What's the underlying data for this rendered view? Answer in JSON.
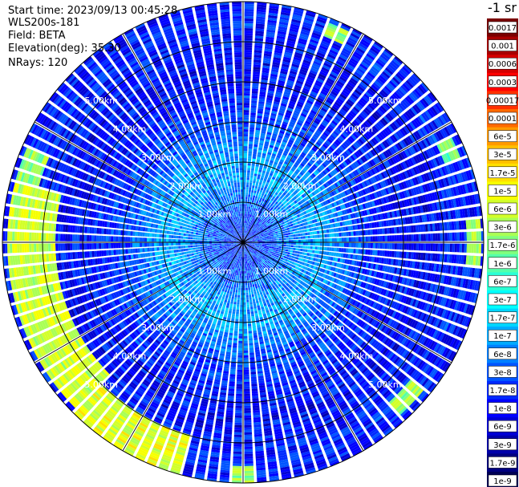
{
  "header": {
    "start_time": "Start time: 2023/09/13 00:45:28",
    "instrument": "WLS200s-181",
    "field": "Field: BETA",
    "elevation": "Elevation(deg): 35.30",
    "nrays": "NRays: 120"
  },
  "colorbar": {
    "unit_label": "-1 sr",
    "labels": [
      "0.0017",
      "0.001",
      "0.0006",
      "0.0003",
      "0.00017",
      "0.0001",
      "6e-5",
      "3e-5",
      "1.7e-5",
      "1e-5",
      "6e-6",
      "3e-6",
      "1.7e-6",
      "1e-6",
      "6e-7",
      "3e-7",
      "1.7e-7",
      "1e-7",
      "6e-8",
      "3e-8",
      "1.7e-8",
      "1e-8",
      "6e-9",
      "3e-9",
      "1.7e-9",
      "1e-9"
    ],
    "colors": [
      "#7a0000",
      "#a80000",
      "#d40000",
      "#ff0000",
      "#ff3000",
      "#ff6a00",
      "#ff9a00",
      "#ffbf00",
      "#ffe000",
      "#f6ff00",
      "#d2ff2a",
      "#a9ff55",
      "#80ff7e",
      "#55ffaa",
      "#2affd5",
      "#00ffff",
      "#00d5ff",
      "#00aaff",
      "#0080ff",
      "#0055ff",
      "#002aff",
      "#0000ff",
      "#0000d5",
      "#0000aa",
      "#000080",
      "#000055"
    ]
  },
  "chart_data": {
    "type": "heatmap",
    "projection": "polar (PPI scan)",
    "field": "BETA",
    "nrays": 120,
    "range_ring_labels": [
      "1.00km",
      "2.00km",
      "3.00km",
      "4.00km",
      "5.00km"
    ],
    "range_rings_km": [
      1,
      2,
      3,
      4,
      5
    ],
    "max_range_km": 6.0,
    "azimuth_spokes_deg": [
      0,
      30,
      60,
      90,
      120,
      150,
      180,
      210,
      240,
      270,
      300,
      330
    ],
    "beta_log10_by_range": {
      "range_km": [
        0.0,
        0.5,
        1.0,
        1.5,
        2.0,
        2.5,
        3.0,
        3.5,
        4.0,
        4.5,
        5.0,
        5.5,
        6.0
      ],
      "log10_beta": [
        -7.7,
        -7.6,
        -7.4,
        -7.1,
        -7.0,
        -7.3,
        -7.6,
        -7.8,
        -7.9,
        -8.0,
        -7.9,
        -7.8,
        -7.9
      ]
    },
    "enhanced_backscatter_zones": [
      {
        "azimuth_deg_from": 225,
        "azimuth_deg_to": 285,
        "range_km_from": 4.7,
        "range_km_to": 5.9,
        "log10_beta": -5.3
      },
      {
        "azimuth_deg_from": 195,
        "azimuth_deg_to": 225,
        "range_km_from": 5.0,
        "range_km_to": 6.0,
        "log10_beta": -5.2
      },
      {
        "azimuth_deg_from": 285,
        "azimuth_deg_to": 295,
        "range_km_from": 5.3,
        "range_km_to": 5.9,
        "log10_beta": -5.7
      },
      {
        "azimuth_deg_from": 85,
        "azimuth_deg_to": 95,
        "range_km_from": 5.6,
        "range_km_to": 5.95,
        "log10_beta": -5.5
      },
      {
        "azimuth_deg_from": 128,
        "azimuth_deg_to": 138,
        "range_km_from": 5.4,
        "range_km_to": 5.8,
        "log10_beta": -5.6
      },
      {
        "azimuth_deg_from": 20,
        "azimuth_deg_to": 28,
        "range_km_from": 5.5,
        "range_km_to": 5.9,
        "log10_beta": -5.6
      },
      {
        "azimuth_deg_from": 62,
        "azimuth_deg_to": 70,
        "range_km_from": 5.4,
        "range_km_to": 5.8,
        "log10_beta": -5.8
      },
      {
        "azimuth_deg_from": 177,
        "azimuth_deg_to": 182,
        "range_km_from": 5.6,
        "range_km_to": 6.0,
        "log10_beta": -5.6
      }
    ]
  }
}
